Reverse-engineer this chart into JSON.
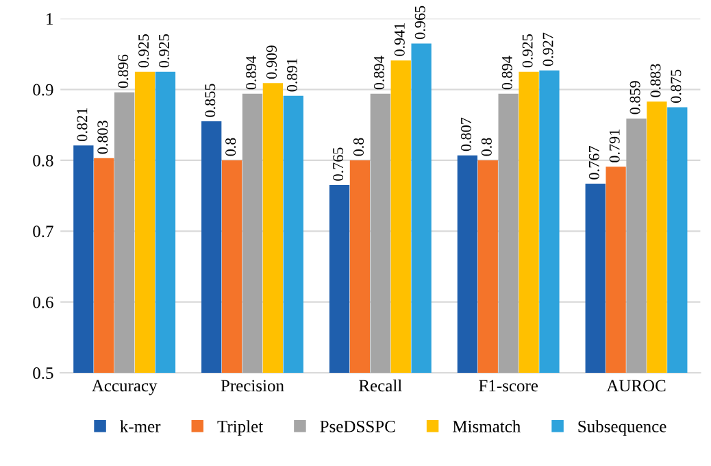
{
  "chart_data": {
    "type": "bar",
    "categories": [
      "Accuracy",
      "Precision",
      "Recall",
      "F1-score",
      "AUROC"
    ],
    "series": [
      {
        "name": "k-mer",
        "color": "#1f5fad",
        "values": [
          0.821,
          0.855,
          0.765,
          0.807,
          0.767
        ]
      },
      {
        "name": "Triplet",
        "color": "#f4742a",
        "values": [
          0.803,
          0.8,
          0.8,
          0.8,
          0.791
        ]
      },
      {
        "name": "PseDSSPC",
        "color": "#a5a5a5",
        "values": [
          0.896,
          0.894,
          0.894,
          0.894,
          0.859
        ]
      },
      {
        "name": "Mismatch",
        "color": "#ffc000",
        "values": [
          0.925,
          0.909,
          0.941,
          0.925,
          0.883
        ]
      },
      {
        "name": "Subsequence",
        "color": "#2ea3dc",
        "values": [
          0.925,
          0.891,
          0.965,
          0.927,
          0.875
        ]
      }
    ],
    "value_labels": [
      [
        "0.821",
        "0.855",
        "0.765",
        "0.807",
        "0.767"
      ],
      [
        "0.803",
        "0.8",
        "0.8",
        "0.8",
        "0.791"
      ],
      [
        "0.896",
        "0.894",
        "0.894",
        "0.894",
        "0.859"
      ],
      [
        "0.925",
        "0.909",
        "0.941",
        "0.925",
        "0.883"
      ],
      [
        "0.925",
        "0.891",
        "0.965",
        "0.927",
        "0.875"
      ]
    ],
    "ylim": [
      0.5,
      1
    ],
    "yticks": [
      0.5,
      0.6,
      0.7,
      0.8,
      0.9,
      1
    ],
    "grid": "y",
    "legend": "bottom"
  }
}
